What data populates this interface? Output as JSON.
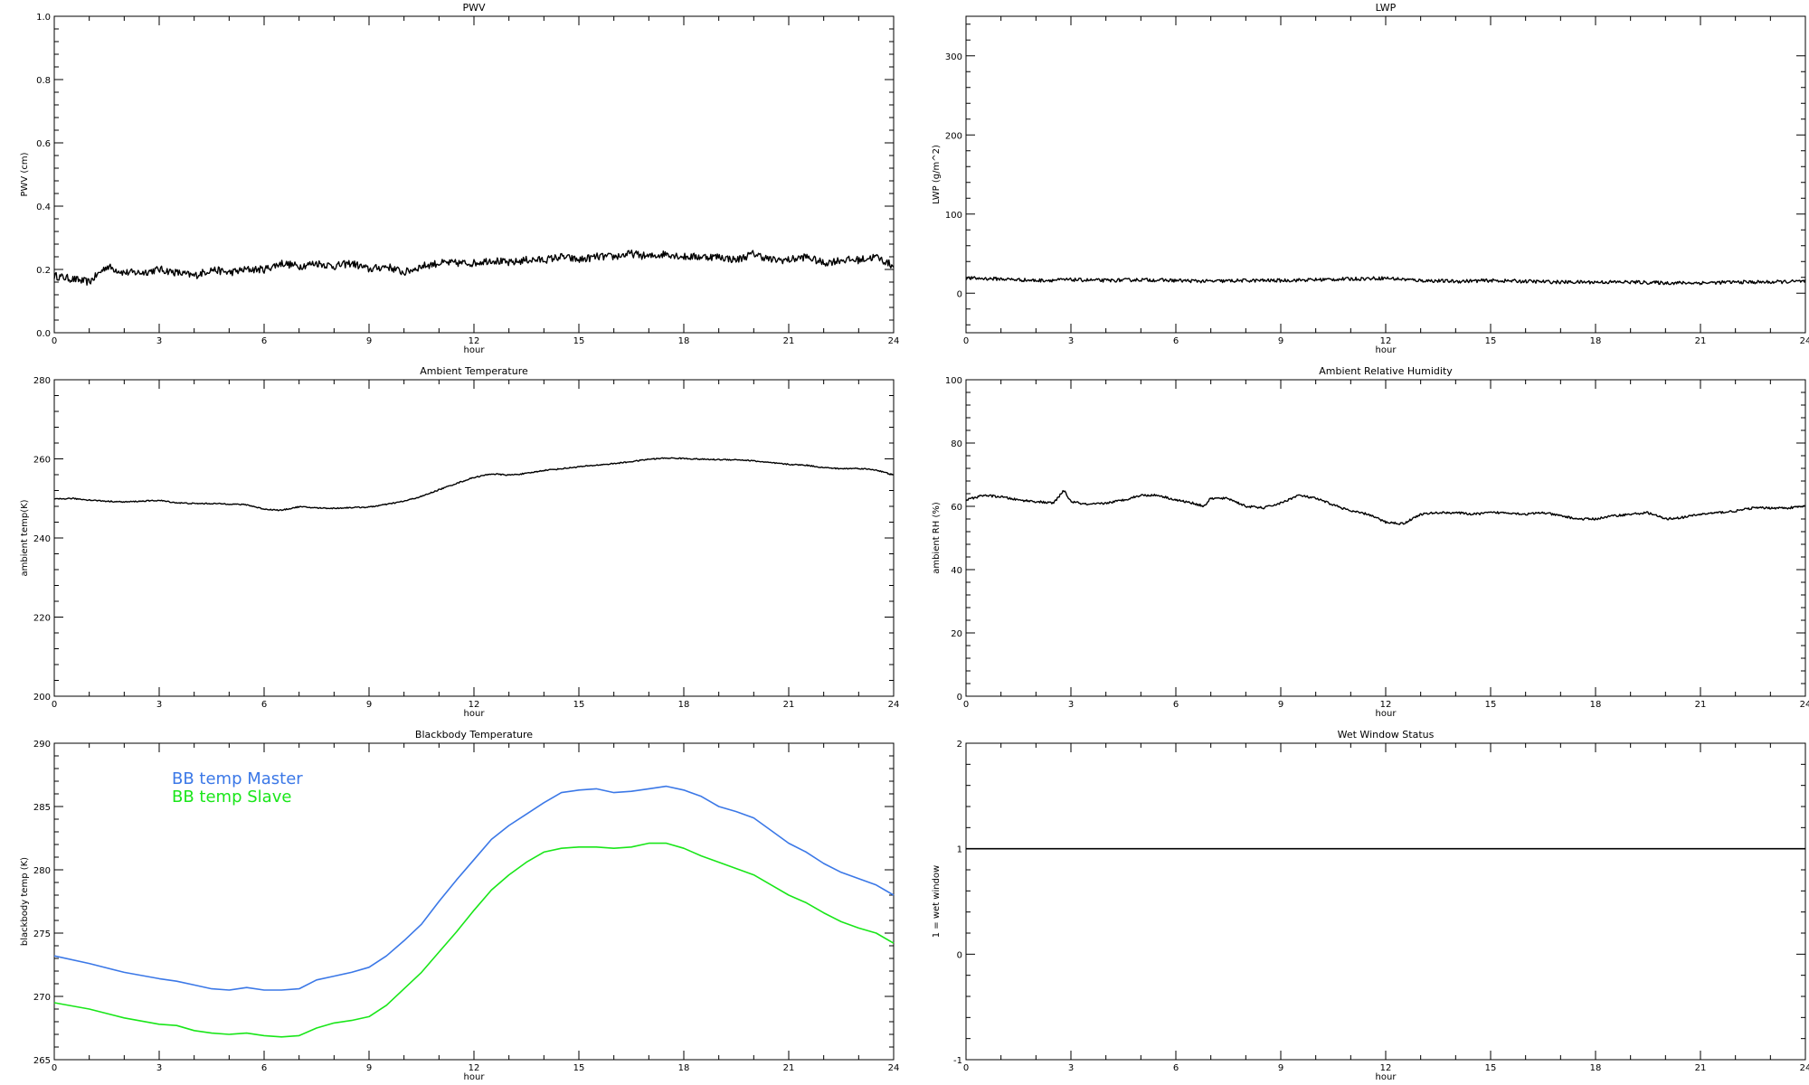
{
  "chart_data": [
    {
      "type": "line",
      "title": "PWV",
      "xlabel": "hour",
      "ylabel": "PWV (cm)",
      "xlim": [
        0,
        24
      ],
      "ylim": [
        0,
        1.0
      ],
      "x_ticks": [
        0,
        3,
        6,
        9,
        12,
        15,
        18,
        21,
        24
      ],
      "y_ticks": [
        0.0,
        0.2,
        0.4,
        0.6,
        0.8,
        1.0
      ],
      "y_tick_labels": [
        "0.0",
        "0.2",
        "0.4",
        "0.6",
        "0.8",
        "1.0"
      ],
      "noise": 0.012,
      "series": [
        {
          "color": "#000000",
          "x": [
            0,
            0.5,
            1,
            1.5,
            2,
            2.5,
            3,
            3.5,
            4,
            4.5,
            5,
            5.5,
            6,
            6.5,
            7,
            7.5,
            8,
            8.5,
            9,
            9.5,
            10,
            10.5,
            11,
            11.5,
            12,
            12.5,
            13,
            13.5,
            14,
            14.5,
            15,
            15.5,
            16,
            16.5,
            17,
            17.5,
            18,
            18.5,
            19,
            19.5,
            20,
            20.5,
            21,
            21.5,
            22,
            22.5,
            23,
            23.5,
            24
          ],
          "values": [
            0.18,
            0.17,
            0.16,
            0.21,
            0.19,
            0.19,
            0.2,
            0.19,
            0.18,
            0.2,
            0.19,
            0.2,
            0.2,
            0.22,
            0.21,
            0.22,
            0.21,
            0.22,
            0.2,
            0.21,
            0.19,
            0.21,
            0.22,
            0.22,
            0.22,
            0.23,
            0.22,
            0.23,
            0.23,
            0.24,
            0.23,
            0.24,
            0.24,
            0.25,
            0.24,
            0.25,
            0.24,
            0.24,
            0.24,
            0.23,
            0.25,
            0.23,
            0.23,
            0.24,
            0.22,
            0.23,
            0.23,
            0.24,
            0.21
          ]
        }
      ]
    },
    {
      "type": "line",
      "title": "LWP",
      "xlabel": "hour",
      "ylabel": "LWP (g/m^2)",
      "xlim": [
        0,
        24
      ],
      "ylim": [
        -50,
        350
      ],
      "x_ticks": [
        0,
        3,
        6,
        9,
        12,
        15,
        18,
        21,
        24
      ],
      "y_ticks": [
        0,
        100,
        200,
        300
      ],
      "y_tick_labels": [
        "0",
        "100",
        "200",
        "300"
      ],
      "noise": 2.2,
      "series": [
        {
          "color": "#000000",
          "x": [
            0,
            1,
            2,
            3,
            4,
            5,
            6,
            7,
            8,
            9,
            10,
            11,
            12,
            13,
            14,
            15,
            16,
            17,
            18,
            19,
            20,
            21,
            22,
            23,
            24
          ],
          "values": [
            19,
            18,
            16,
            17,
            16,
            17,
            16,
            15,
            16,
            16,
            17,
            18,
            19,
            16,
            15,
            16,
            15,
            14,
            14,
            14,
            13,
            13,
            14,
            14,
            15
          ]
        }
      ]
    },
    {
      "type": "line",
      "title": "Ambient Temperature",
      "xlabel": "hour",
      "ylabel": "ambient temp(K)",
      "xlim": [
        0,
        24
      ],
      "ylim": [
        200,
        280
      ],
      "x_ticks": [
        0,
        3,
        6,
        9,
        12,
        15,
        18,
        21,
        24
      ],
      "y_ticks": [
        200,
        220,
        240,
        260,
        280
      ],
      "y_tick_labels": [
        "200",
        "220",
        "240",
        "260",
        "280"
      ],
      "noise": 0.15,
      "series": [
        {
          "color": "#000000",
          "x": [
            0,
            0.5,
            1,
            1.5,
            2,
            2.5,
            3,
            3.5,
            4,
            4.5,
            5,
            5.5,
            6,
            6.5,
            7,
            7.5,
            8,
            8.5,
            9,
            9.5,
            10,
            10.5,
            11,
            11.5,
            12,
            12.5,
            13,
            13.5,
            14,
            14.5,
            15,
            15.5,
            16,
            16.5,
            17,
            17.5,
            18,
            18.5,
            19,
            19.5,
            20,
            20.5,
            21,
            21.5,
            22,
            22.5,
            23,
            23.5,
            24
          ],
          "values": [
            249.8,
            250.0,
            249.6,
            249.3,
            249.1,
            249.3,
            249.5,
            248.9,
            248.7,
            248.7,
            248.6,
            248.4,
            247.3,
            247.0,
            247.9,
            247.6,
            247.5,
            247.7,
            247.8,
            248.5,
            249.3,
            250.5,
            252.2,
            253.8,
            255.3,
            256.2,
            255.9,
            256.3,
            257.1,
            257.5,
            258.0,
            258.4,
            258.8,
            259.3,
            259.9,
            260.2,
            260.1,
            259.9,
            259.8,
            259.8,
            259.5,
            259.0,
            258.6,
            258.4,
            257.8,
            257.5,
            257.6,
            257.2,
            255.9
          ]
        }
      ]
    },
    {
      "type": "line",
      "title": "Ambient Relative Humidity",
      "xlabel": "hour",
      "ylabel": "ambient RH (%)",
      "xlim": [
        0,
        24
      ],
      "ylim": [
        0,
        100
      ],
      "x_ticks": [
        0,
        3,
        6,
        9,
        12,
        15,
        18,
        21,
        24
      ],
      "y_ticks": [
        0,
        20,
        40,
        60,
        80,
        100
      ],
      "y_tick_labels": [
        "0",
        "20",
        "40",
        "60",
        "80",
        "100"
      ],
      "noise": 0.35,
      "series": [
        {
          "color": "#000000",
          "x": [
            0,
            0.5,
            1,
            1.5,
            2,
            2.5,
            2.8,
            3,
            3.5,
            4,
            4.5,
            5,
            5.5,
            6,
            6.5,
            6.8,
            7,
            7.5,
            8,
            8.5,
            9,
            9.5,
            10,
            10.5,
            11,
            11.5,
            12,
            12.5,
            13,
            13.5,
            14,
            14.5,
            15,
            15.5,
            16,
            16.5,
            17,
            17.5,
            18,
            18.5,
            19,
            19.5,
            20,
            20.5,
            21,
            21.5,
            22,
            22.5,
            23,
            23.5,
            24
          ],
          "values": [
            62,
            63.5,
            63,
            62,
            61.5,
            61,
            65,
            61.5,
            60.5,
            61,
            62,
            63.5,
            63.5,
            62,
            61,
            60,
            62.5,
            62.5,
            60,
            59.5,
            61,
            63.5,
            62.5,
            60.5,
            58.5,
            57.5,
            55,
            54.5,
            57.5,
            58,
            58,
            57.5,
            58,
            58,
            57.5,
            58,
            57,
            56,
            56,
            57,
            57.5,
            58,
            56,
            56.5,
            57.5,
            58,
            58.5,
            59.5,
            59.5,
            59.5,
            60
          ]
        }
      ]
    },
    {
      "type": "line",
      "title": "Blackbody Temperature",
      "xlabel": "hour",
      "ylabel": "blackbody temp (K)",
      "xlim": [
        0,
        24
      ],
      "ylim": [
        265,
        290
      ],
      "x_ticks": [
        0,
        3,
        6,
        9,
        12,
        15,
        18,
        21,
        24
      ],
      "y_ticks": [
        265,
        270,
        275,
        280,
        285,
        290
      ],
      "y_tick_labels": [
        "265",
        "270",
        "275",
        "280",
        "285",
        "290"
      ],
      "noise": 0,
      "legend": "upper-left",
      "series": [
        {
          "name": "BB temp Master",
          "color": "#3b78e7",
          "x": [
            0,
            1,
            2,
            3,
            3.5,
            4,
            4.5,
            5,
            5.5,
            6,
            6.5,
            7,
            7.5,
            8,
            8.5,
            9,
            9.5,
            10,
            10.5,
            11,
            11.5,
            12,
            12.5,
            13,
            13.5,
            14,
            14.5,
            15,
            15.5,
            16,
            16.5,
            17,
            17.5,
            18,
            18.5,
            19,
            19.5,
            20,
            20.5,
            21,
            21.5,
            22,
            22.5,
            23,
            23.5,
            24
          ],
          "values": [
            273.2,
            272.6,
            271.9,
            271.4,
            271.2,
            270.9,
            270.6,
            270.5,
            270.7,
            270.5,
            270.5,
            270.6,
            271.3,
            271.6,
            271.9,
            272.3,
            273.2,
            274.4,
            275.7,
            277.5,
            279.2,
            280.8,
            282.4,
            283.5,
            284.4,
            285.3,
            286.1,
            286.3,
            286.4,
            286.1,
            286.2,
            286.4,
            286.6,
            286.3,
            285.8,
            285.0,
            284.6,
            284.1,
            283.1,
            282.1,
            281.4,
            280.5,
            279.8,
            279.3,
            278.8,
            278.0
          ]
        },
        {
          "name": "BB temp Slave",
          "color": "#19e619",
          "x": [
            0,
            1,
            2,
            3,
            3.5,
            4,
            4.5,
            5,
            5.5,
            6,
            6.5,
            7,
            7.5,
            8,
            8.5,
            9,
            9.5,
            10,
            10.5,
            11,
            11.5,
            12,
            12.5,
            13,
            13.5,
            14,
            14.5,
            15,
            15.5,
            16,
            16.5,
            17,
            17.5,
            18,
            18.5,
            19,
            19.5,
            20,
            20.5,
            21,
            21.5,
            22,
            22.5,
            23,
            23.5,
            24
          ],
          "values": [
            269.5,
            269.0,
            268.3,
            267.8,
            267.7,
            267.3,
            267.1,
            267.0,
            267.1,
            266.9,
            266.8,
            266.9,
            267.5,
            267.9,
            268.1,
            268.4,
            269.3,
            270.6,
            271.9,
            273.5,
            275.1,
            276.8,
            278.4,
            279.6,
            280.6,
            281.4,
            281.7,
            281.8,
            281.8,
            281.7,
            281.8,
            282.1,
            282.1,
            281.7,
            281.1,
            280.6,
            280.1,
            279.6,
            278.8,
            278.0,
            277.4,
            276.6,
            275.9,
            275.4,
            275.0,
            274.2
          ]
        }
      ]
    },
    {
      "type": "line",
      "title": "Wet Window Status",
      "xlabel": "hour",
      "ylabel": "1 = wet window",
      "xlim": [
        0,
        24
      ],
      "ylim": [
        -1,
        2
      ],
      "x_ticks": [
        0,
        3,
        6,
        9,
        12,
        15,
        18,
        21,
        24
      ],
      "y_ticks": [
        -1,
        0,
        1,
        2
      ],
      "y_tick_labels": [
        "-1",
        "0",
        "1",
        "2"
      ],
      "noise": 0,
      "series": [
        {
          "color": "#000000",
          "x": [
            0,
            24
          ],
          "values": [
            1,
            1
          ]
        }
      ]
    }
  ]
}
